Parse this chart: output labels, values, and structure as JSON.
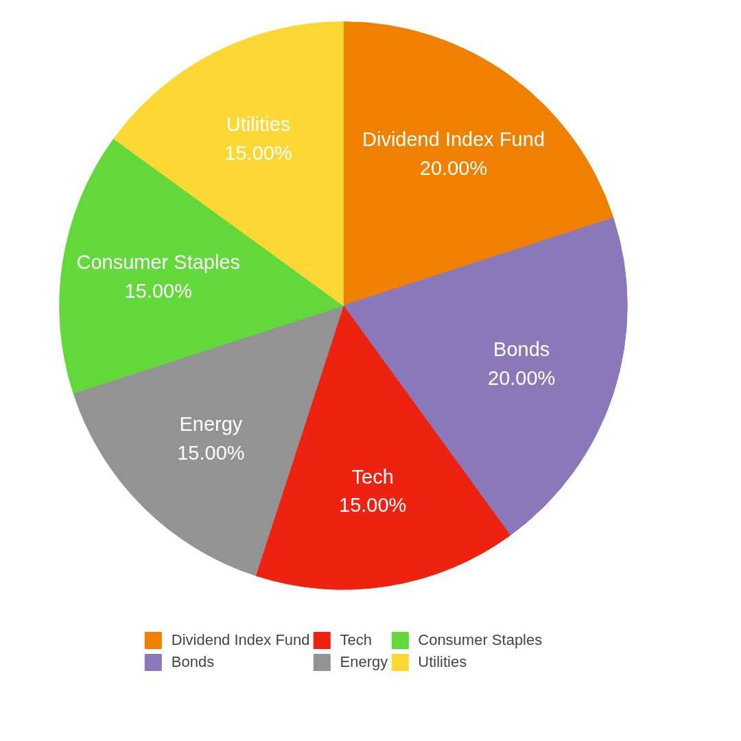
{
  "chart_data": {
    "type": "pie",
    "categories": [
      "Dividend Index Fund",
      "Bonds",
      "Tech",
      "Energy",
      "Consumer Staples",
      "Utilities"
    ],
    "values": [
      20,
      20,
      15,
      15,
      15,
      15
    ],
    "value_labels": [
      "20.00%",
      "20.00%",
      "15.00%",
      "15.00%",
      "15.00%",
      "15.00%"
    ],
    "colors": [
      "#f08000",
      "#8a78b8",
      "#ee2210",
      "#939393",
      "#62d83a",
      "#fdd835"
    ],
    "legend": "bottom"
  }
}
